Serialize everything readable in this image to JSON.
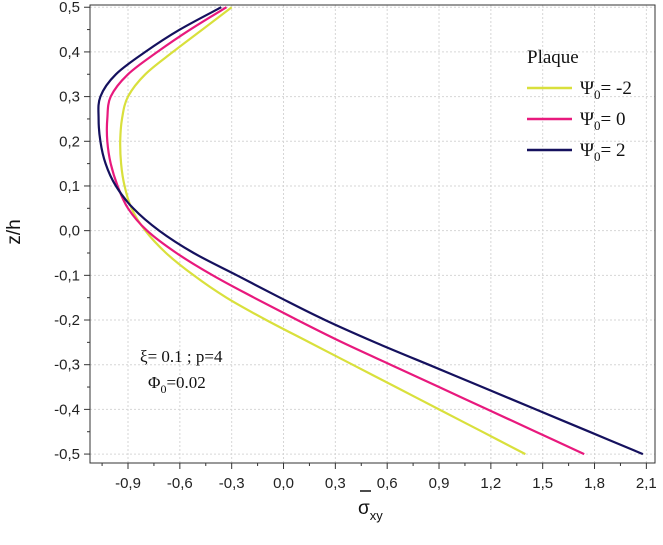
{
  "chart_data": {
    "type": "line",
    "xlabel": "σ",
    "xlabel_sub": "xy",
    "ylabel": "z/h",
    "xlim": [
      -1.12,
      2.15
    ],
    "ylim": [
      -0.52,
      0.505
    ],
    "xticks": [
      -0.9,
      -0.6,
      -0.3,
      0.0,
      0.3,
      0.6,
      0.9,
      1.2,
      1.5,
      1.8,
      2.1
    ],
    "xtick_labels": [
      "-0,9",
      "-0,6",
      "-0,3",
      "0,0",
      "0,3",
      "0,6",
      "0,9",
      "1,2",
      "1,5",
      "1,8",
      "2,1"
    ],
    "yticks": [
      -0.5,
      -0.4,
      -0.3,
      -0.2,
      -0.1,
      0.0,
      0.1,
      0.2,
      0.3,
      0.4,
      0.5
    ],
    "ytick_labels": [
      "-0,5",
      "-0,4",
      "-0,3",
      "-0,2",
      "-0,1",
      "0,0",
      "0,1",
      "0,2",
      "0,3",
      "0,4",
      "0,5"
    ],
    "grid": true,
    "legend": {
      "title": "Plaque",
      "placement": "top-right",
      "entries": [
        {
          "sym": "Ψ",
          "sub": "0",
          "text": "= -2",
          "color": "#d9e03c"
        },
        {
          "sym": "Ψ",
          "sub": "0",
          "text": "= 0",
          "color": "#e8197d"
        },
        {
          "sym": "Ψ",
          "sub": "0",
          "text": "= 2",
          "color": "#15115e"
        }
      ]
    },
    "annotations": [
      {
        "text": "ξ= 0.1 ; p=4"
      },
      {
        "sym": "Φ",
        "sub": "0",
        "text": "=0.02"
      }
    ],
    "y": [
      -0.5,
      -0.45,
      -0.4,
      -0.35,
      -0.3,
      -0.25,
      -0.2,
      -0.15,
      -0.1,
      -0.05,
      0.0,
      0.05,
      0.1,
      0.15,
      0.2,
      0.25,
      0.3,
      0.35,
      0.4,
      0.45,
      0.5
    ],
    "series": [
      {
        "name": "Ψ0= -2",
        "color": "#d9e03c",
        "x": [
          1.4,
          1.15,
          0.9,
          0.65,
          0.4,
          0.15,
          -0.1,
          -0.33,
          -0.52,
          -0.68,
          -0.8,
          -0.88,
          -0.92,
          -0.94,
          -0.945,
          -0.935,
          -0.9,
          -0.8,
          -0.64,
          -0.47,
          -0.3
        ]
      },
      {
        "name": "Ψ0= 0",
        "color": "#e8197d",
        "x": [
          1.74,
          1.46,
          1.18,
          0.9,
          0.62,
          0.34,
          0.08,
          -0.17,
          -0.41,
          -0.62,
          -0.79,
          -0.9,
          -0.96,
          -1.0,
          -1.02,
          -1.02,
          -1.0,
          -0.9,
          -0.73,
          -0.54,
          -0.33
        ]
      },
      {
        "name": "Ψ0= 2",
        "color": "#15115e",
        "x": [
          2.08,
          1.77,
          1.46,
          1.15,
          0.84,
          0.53,
          0.24,
          -0.02,
          -0.27,
          -0.52,
          -0.72,
          -0.87,
          -0.97,
          -1.03,
          -1.06,
          -1.07,
          -1.06,
          -0.97,
          -0.8,
          -0.6,
          -0.36
        ]
      }
    ]
  }
}
